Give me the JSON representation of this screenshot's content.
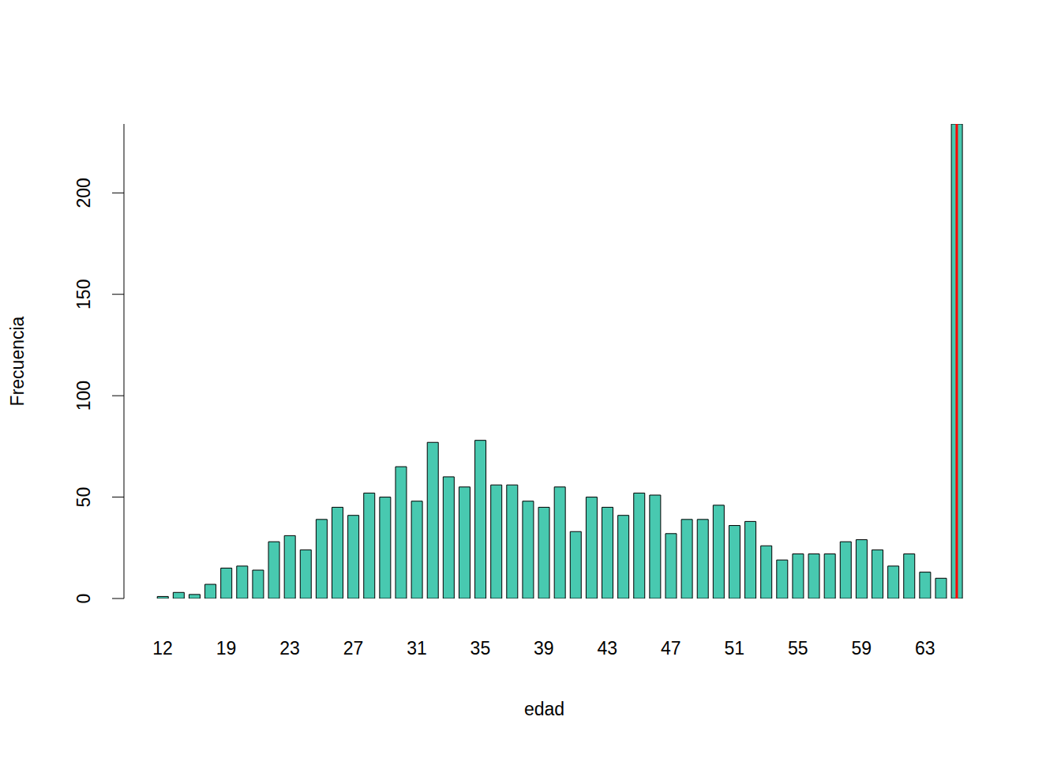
{
  "chart_data": {
    "type": "bar",
    "xlabel": "edad",
    "ylabel": "Frecuencia",
    "categories": [
      "12",
      null,
      null,
      null,
      "19",
      null,
      null,
      null,
      "23",
      null,
      null,
      null,
      "27",
      null,
      null,
      null,
      "31",
      null,
      null,
      null,
      "35",
      null,
      null,
      null,
      "39",
      null,
      null,
      null,
      "43",
      null,
      null,
      null,
      "47",
      null,
      null,
      null,
      "51",
      null,
      null,
      null,
      "55",
      null,
      null,
      null,
      "59",
      null,
      null,
      null,
      "63",
      null,
      null
    ],
    "values": [
      1,
      3,
      2,
      7,
      15,
      16,
      14,
      28,
      31,
      24,
      39,
      45,
      41,
      52,
      50,
      65,
      48,
      77,
      60,
      55,
      78,
      56,
      56,
      48,
      45,
      55,
      33,
      50,
      45,
      41,
      52,
      51,
      32,
      39,
      39,
      46,
      36,
      38,
      26,
      19,
      22,
      22,
      22,
      28,
      29,
      24,
      16,
      22,
      13,
      10,
      234
    ],
    "color": "#48c9b0",
    "ylim": [
      0,
      234
    ],
    "yticks": [
      0,
      50,
      100,
      150,
      200
    ],
    "vline_position": {
      "x": 50,
      "color": "#ff0000"
    }
  }
}
